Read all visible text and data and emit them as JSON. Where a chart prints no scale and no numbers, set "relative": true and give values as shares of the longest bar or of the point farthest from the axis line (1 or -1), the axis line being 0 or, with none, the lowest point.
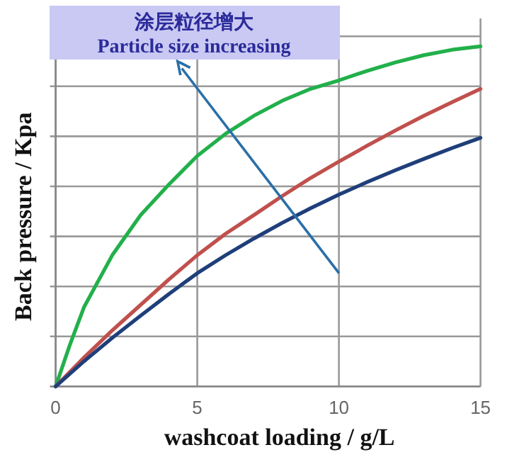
{
  "chart_data": {
    "type": "line",
    "relative": true,
    "xlabel": "washcoat loading / g/L",
    "ylabel": "Back pressure / Kpa",
    "annotations": [
      "涂层粒径增大",
      "Particle size increasing"
    ],
    "x": [
      0,
      1,
      2,
      3,
      4,
      5,
      6,
      7,
      8,
      9,
      10,
      11,
      12,
      13,
      14,
      15
    ],
    "xlim": [
      0,
      15
    ],
    "xticks": [
      0,
      5,
      10,
      15
    ],
    "grid": true,
    "series": [
      {
        "color": "#22b04b",
        "x": [
          0,
          0.5,
          1,
          2,
          3,
          4,
          5,
          6,
          7,
          8,
          9,
          10,
          11,
          12,
          13,
          14,
          15
        ],
        "values": [
          0,
          0.122,
          0.233,
          0.386,
          0.504,
          0.594,
          0.678,
          0.743,
          0.796,
          0.84,
          0.875,
          0.9,
          0.928,
          0.953,
          0.974,
          0.99,
          1
        ]
      },
      {
        "color": "#c0504d",
        "values": [
          0,
          0.085,
          0.165,
          0.24,
          0.315,
          0.386,
          0.449,
          0.504,
          0.56,
          0.613,
          0.661,
          0.708,
          0.753,
          0.796,
          0.836,
          0.875
        ]
      },
      {
        "color": "#1f3f7a",
        "values": [
          0,
          0.074,
          0.143,
          0.208,
          0.272,
          0.333,
          0.386,
          0.435,
          0.481,
          0.524,
          0.564,
          0.601,
          0.636,
          0.669,
          0.701,
          0.731
        ]
      }
    ]
  }
}
